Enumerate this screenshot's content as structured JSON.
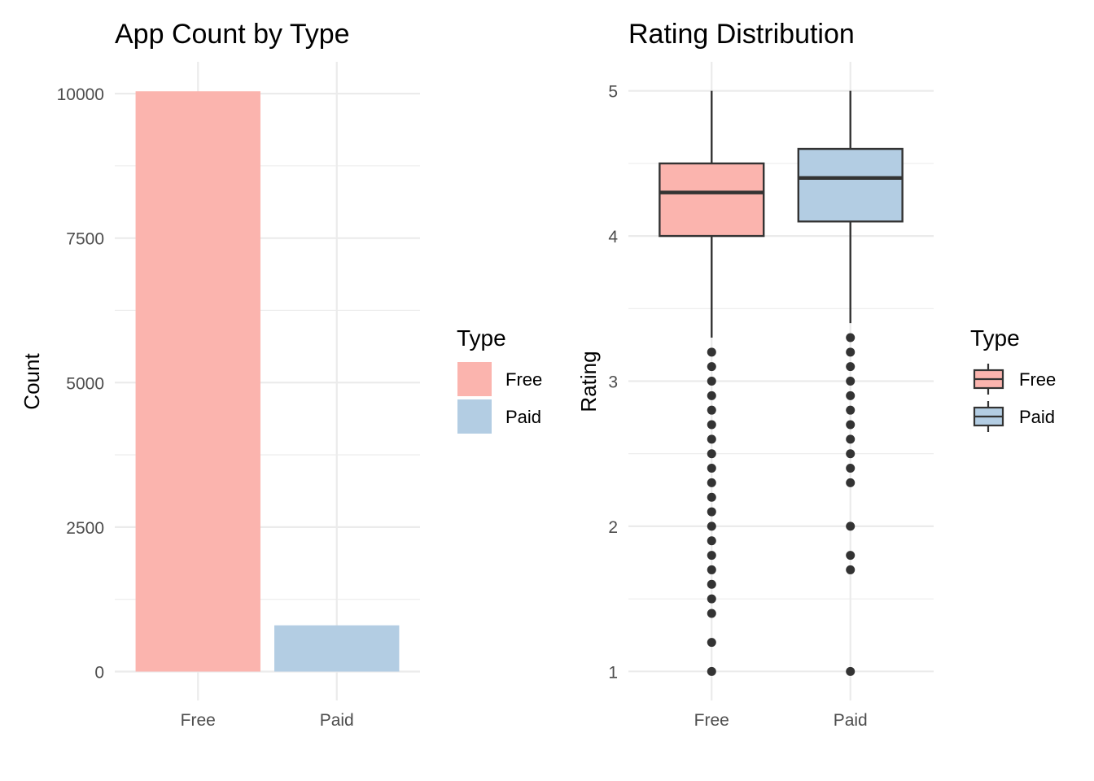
{
  "colors": {
    "free": "#FBB4AE",
    "paid": "#B3CDE3",
    "stroke": "#333333"
  },
  "chart_data": [
    {
      "type": "bar",
      "title": "App Count by Type",
      "xlabel": "",
      "ylabel": "Count",
      "categories": [
        "Free",
        "Paid"
      ],
      "values": [
        10040,
        800
      ],
      "ylim": [
        -500,
        10550
      ],
      "yticks": [
        0,
        2500,
        5000,
        7500,
        10000
      ],
      "grid": true,
      "legend": {
        "title": "Type",
        "entries": [
          "Free",
          "Paid"
        ],
        "placement": "right"
      }
    },
    {
      "type": "box",
      "title": "Rating Distribution",
      "xlabel": "",
      "ylabel": "Rating",
      "categories": [
        "Free",
        "Paid"
      ],
      "ylim": [
        0.8,
        5.2
      ],
      "yticks": [
        1,
        2,
        3,
        4,
        5
      ],
      "grid": true,
      "series": [
        {
          "category": "Free",
          "min": 3.3,
          "q1": 4.0,
          "median": 4.3,
          "q3": 4.5,
          "max": 5.0,
          "outliers": [
            3.2,
            3.1,
            3.0,
            2.9,
            2.8,
            2.7,
            2.6,
            2.5,
            2.4,
            2.3,
            2.2,
            2.1,
            2.0,
            1.9,
            1.8,
            1.7,
            1.6,
            1.5,
            1.4,
            1.2,
            1.0
          ]
        },
        {
          "category": "Paid",
          "min": 3.4,
          "q1": 4.1,
          "median": 4.4,
          "q3": 4.6,
          "max": 5.0,
          "outliers": [
            3.3,
            3.2,
            3.1,
            3.0,
            2.9,
            2.8,
            2.7,
            2.6,
            2.5,
            2.4,
            2.3,
            2.0,
            1.8,
            1.7,
            1.0
          ]
        }
      ],
      "legend": {
        "title": "Type",
        "entries": [
          "Free",
          "Paid"
        ],
        "placement": "right"
      }
    }
  ]
}
